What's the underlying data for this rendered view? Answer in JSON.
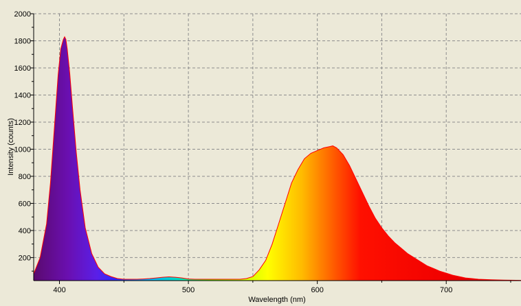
{
  "chart_data": {
    "type": "area",
    "title": "",
    "xlabel": "Wavelength (nm)",
    "ylabel": "Intensity (counts)",
    "xlim": [
      380,
      758
    ],
    "ylim": [
      30,
      2000
    ],
    "x_ticks": [
      400,
      500,
      600,
      700
    ],
    "y_ticks": [
      200,
      400,
      600,
      800,
      1000,
      1200,
      1400,
      1600,
      1800,
      2000
    ],
    "grid": true,
    "legend": "none",
    "fill": "visible-spectrum gradient (violet to red)",
    "outline_color": "#ff0000",
    "background_color": "#ece9d8",
    "series": [
      {
        "x": [
          380,
          385,
          390,
          393,
          396,
          399,
          401,
          403,
          404,
          405,
          406,
          408,
          410,
          413,
          416,
          420,
          425,
          430,
          435,
          440,
          445,
          450,
          455,
          460,
          465,
          470,
          475,
          480,
          485,
          490,
          495,
          500,
          505,
          510,
          515,
          520,
          525,
          530,
          535,
          540,
          545,
          550,
          555,
          560,
          565,
          570,
          575,
          580,
          585,
          590,
          595,
          600,
          605,
          610,
          612,
          615,
          620,
          625,
          630,
          635,
          640,
          645,
          650,
          655,
          660,
          665,
          670,
          675,
          680,
          685,
          690,
          695,
          700,
          705,
          710,
          715,
          720,
          725,
          730,
          735,
          740,
          745,
          750,
          758
        ],
        "y": [
          80,
          200,
          450,
          750,
          1150,
          1550,
          1740,
          1810,
          1830,
          1810,
          1740,
          1560,
          1320,
          980,
          700,
          420,
          230,
          130,
          80,
          60,
          45,
          40,
          40,
          40,
          42,
          45,
          50,
          55,
          58,
          55,
          50,
          42,
          40,
          40,
          40,
          40,
          40,
          40,
          40,
          40,
          45,
          60,
          110,
          180,
          300,
          450,
          600,
          750,
          850,
          930,
          970,
          990,
          1010,
          1020,
          1025,
          1010,
          960,
          880,
          780,
          680,
          580,
          490,
          420,
          360,
          310,
          270,
          230,
          200,
          170,
          140,
          120,
          100,
          85,
          70,
          60,
          50,
          45,
          40,
          38,
          36,
          35,
          34,
          33,
          32
        ]
      }
    ]
  }
}
